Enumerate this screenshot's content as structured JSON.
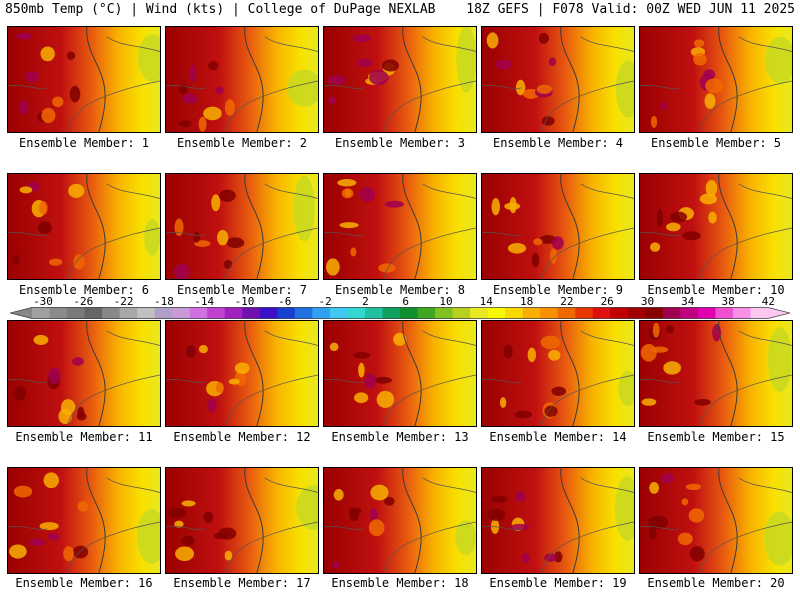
{
  "header": {
    "left": "850mb Temp (°C) | Wind (kts) | College of DuPage NEXLAB",
    "right": "18Z GEFS | F078 Valid: 00Z WED JUN 11 2025"
  },
  "member_label_prefix": "Ensemble Member: ",
  "members": [
    1,
    2,
    3,
    4,
    5,
    6,
    7,
    8,
    9,
    10,
    11,
    12,
    13,
    14,
    15,
    16,
    17,
    18,
    19,
    20
  ],
  "colorbar": {
    "tick_labels": [
      "-30",
      "-26",
      "-22",
      "-18",
      "-14",
      "-10",
      "-6",
      "-2",
      "2",
      "6",
      "10",
      "14",
      "18",
      "22",
      "26",
      "30",
      "34",
      "38",
      "42"
    ],
    "colors": [
      "#a0a0a0",
      "#8a8a8a",
      "#7a7a7a",
      "#666666",
      "#888888",
      "#a8a8a8",
      "#c0c0c0",
      "#b0a0c8",
      "#c89ad8",
      "#d070e0",
      "#c040d0",
      "#a020c0",
      "#7010b0",
      "#3a10c8",
      "#1840d0",
      "#2070e0",
      "#30a0f0",
      "#40c8f0",
      "#30d8d0",
      "#20c0a0",
      "#10a060",
      "#109030",
      "#40a820",
      "#80c020",
      "#b8d020",
      "#e8e820",
      "#f8f800",
      "#f8d800",
      "#f8b000",
      "#f89000",
      "#f06800",
      "#e83800",
      "#e01010",
      "#c00000",
      "#a00000",
      "#880000",
      "#a00050",
      "#c00080",
      "#e000b0",
      "#f050d0",
      "#f890e8",
      "#fcc8f0"
    ],
    "left_end": "#888888",
    "right_end": "#fcc8f0"
  }
}
